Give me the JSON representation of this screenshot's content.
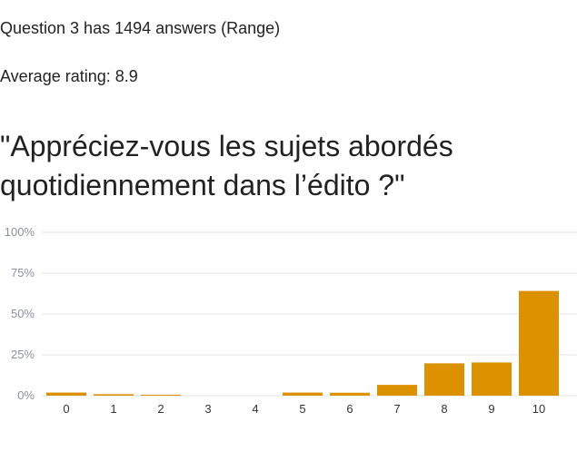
{
  "summary": {
    "answers_line": "Question 3 has 1494 answers (Range)",
    "average_line": "Average rating: 8.9"
  },
  "question": {
    "title": "\"Appréciez-vous les sujets abordés quotidiennement dans l’édito ?\""
  },
  "colors": {
    "bar": "#db9100",
    "grid": "#e6e6e6",
    "tick_text": "#8a9199",
    "category_text": "#333333"
  },
  "chart_data": {
    "type": "bar",
    "categories": [
      "0",
      "1",
      "2",
      "3",
      "4",
      "5",
      "6",
      "7",
      "8",
      "9",
      "10"
    ],
    "values": [
      1.9,
      0.9,
      0.5,
      0.0,
      0.0,
      1.9,
      1.8,
      6.6,
      19.8,
      20.3,
      64.1
    ],
    "y_ticks": [
      "0%",
      "25%",
      "50%",
      "75%",
      "100%"
    ],
    "ylim": [
      0,
      100
    ],
    "y_unit": "%",
    "grid": true,
    "legend": "none",
    "title": "",
    "xlabel": "",
    "ylabel": ""
  }
}
